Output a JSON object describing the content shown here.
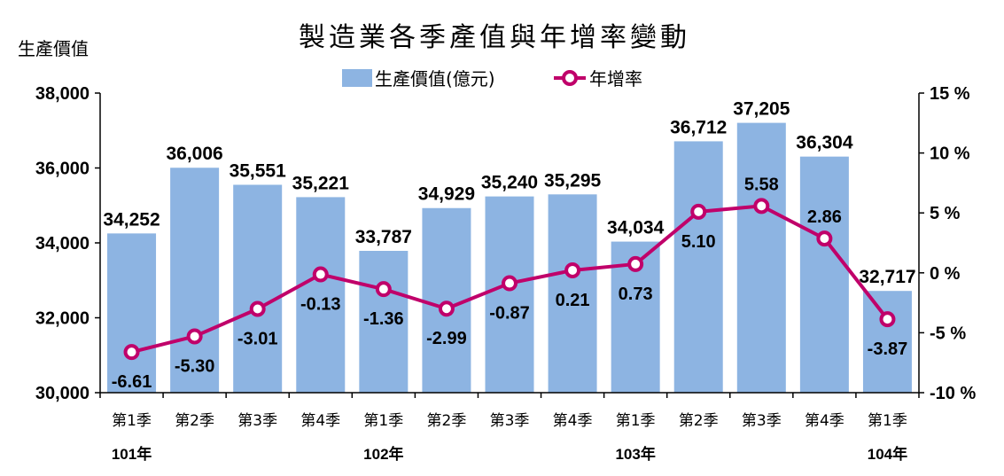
{
  "chart_data": {
    "type": "bar",
    "title": "製造業各季產值與年增率變動",
    "ylabel": "生產價值",
    "ylim": [
      30000,
      38000
    ],
    "yticks": [
      "30,000",
      "32,000",
      "34,000",
      "36,000",
      "38,000"
    ],
    "y2lim": [
      -10,
      15
    ],
    "y2ticks": [
      "-10 %",
      "-5 %",
      "0 %",
      "5 %",
      "10 %",
      "15 %"
    ],
    "categories": [
      "第1季",
      "第2季",
      "第3季",
      "第4季",
      "第1季",
      "第2季",
      "第3季",
      "第4季",
      "第1季",
      "第2季",
      "第3季",
      "第4季",
      "第1季"
    ],
    "year_labels": [
      {
        "index": 0,
        "label": "101年"
      },
      {
        "index": 4,
        "label": "102年"
      },
      {
        "index": 8,
        "label": "103年"
      },
      {
        "index": 12,
        "label": "104年"
      }
    ],
    "series": [
      {
        "name": "生產價值(億元)",
        "type": "bar",
        "color": "#8db4e2",
        "values": [
          34252,
          36006,
          35551,
          35221,
          33787,
          34929,
          35240,
          35295,
          34034,
          36712,
          37205,
          36304,
          32717
        ],
        "labels": [
          "34,252",
          "36,006",
          "35,551",
          "35,221",
          "33,787",
          "34,929",
          "35,240",
          "35,295",
          "34,034",
          "36,712",
          "37,205",
          "36,304",
          "32,717"
        ]
      },
      {
        "name": "年增率",
        "type": "line",
        "axis": "right",
        "color": "#c0006a",
        "values": [
          -6.61,
          -5.3,
          -3.01,
          -0.13,
          -1.36,
          -2.99,
          -0.87,
          0.21,
          0.73,
          5.1,
          5.58,
          2.86,
          -3.87
        ],
        "labels": [
          "-6.61",
          "-5.30",
          "-3.01",
          "-0.13",
          "-1.36",
          "-2.99",
          "-0.87",
          "0.21",
          "0.73",
          "5.10",
          "5.58",
          "2.86",
          "-3.87"
        ]
      }
    ],
    "legend": "top-center",
    "grid": false
  }
}
